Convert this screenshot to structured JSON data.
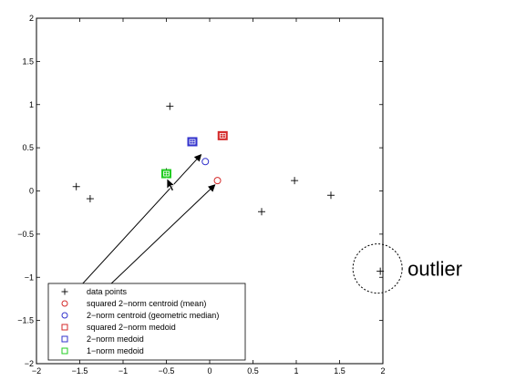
{
  "chart_data": {
    "type": "scatter",
    "xlim": [
      -2,
      2
    ],
    "ylim": [
      -2,
      2
    ],
    "x_ticks": [
      -2,
      -1.5,
      -1,
      -0.5,
      0,
      0.5,
      1,
      1.5,
      2
    ],
    "y_ticks": [
      -2,
      -1.5,
      -1,
      -0.5,
      0,
      0.5,
      1,
      1.5,
      2
    ],
    "x_tick_labels": [
      "−2",
      "−1.5",
      "−1",
      "−0.5",
      "0",
      "0.5",
      "1",
      "1.5",
      "2"
    ],
    "y_tick_labels": [
      "−2",
      "−1.5",
      "−1",
      "−0.5",
      "0",
      "0.5",
      "1",
      "1.5",
      "2"
    ],
    "grid": false,
    "legend_position": "bottom-left",
    "series": [
      {
        "name": "data points",
        "marker": "plus",
        "color": "#000000",
        "points": [
          [
            -0.46,
            0.98
          ],
          [
            -1.54,
            0.05
          ],
          [
            -1.38,
            -0.09
          ],
          [
            -0.5,
            0.22
          ],
          [
            0.6,
            -0.24
          ],
          [
            0.98,
            0.12
          ],
          [
            1.4,
            -0.05
          ],
          [
            1.97,
            -0.93
          ]
        ]
      },
      {
        "name": "squared 2−norm centroid (mean)",
        "marker": "circle",
        "color": "#d42a2a",
        "points": [
          [
            0.09,
            0.12
          ]
        ]
      },
      {
        "name": "2−norm centroid (geometric median)",
        "marker": "circle",
        "color": "#3333cc",
        "points": [
          [
            -0.05,
            0.34
          ]
        ]
      },
      {
        "name": "squared 2−norm medoid",
        "marker": "square",
        "color": "#d42a2a",
        "points": [
          [
            0.15,
            0.64
          ]
        ]
      },
      {
        "name": "2−norm medoid",
        "marker": "square",
        "color": "#3333cc",
        "points": [
          [
            -0.2,
            0.57
          ]
        ]
      },
      {
        "name": "1−norm medoid",
        "marker": "square",
        "color": "#22cc22",
        "points": [
          [
            -0.5,
            0.2
          ]
        ]
      }
    ],
    "arrows": [
      {
        "from": [
          -1.72,
          -1.35
        ],
        "to": [
          -0.1,
          0.42
        ]
      },
      {
        "from": [
          -1.49,
          -1.41
        ],
        "to": [
          0.06,
          0.07
        ]
      }
    ],
    "annotations": [
      {
        "text": "outlier",
        "target": [
          1.97,
          -0.93
        ]
      }
    ]
  }
}
